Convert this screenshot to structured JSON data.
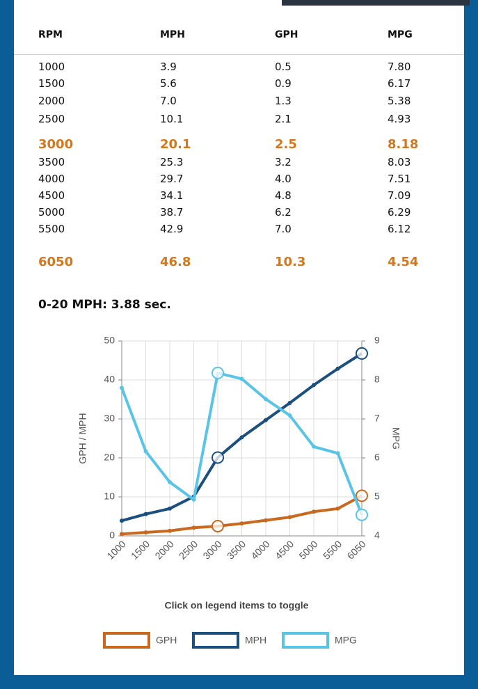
{
  "table": {
    "columns": [
      "RPM",
      "MPH",
      "GPH",
      "MPG"
    ],
    "rows": [
      [
        "1000",
        "3.9",
        "0.5",
        "7.80"
      ],
      [
        "1500",
        "5.6",
        "0.9",
        "6.17"
      ],
      [
        "2000",
        "7.0",
        "1.3",
        "5.38"
      ],
      [
        "2500",
        "10.1",
        "2.1",
        "4.93"
      ],
      [
        "3000",
        "20.1",
        "2.5",
        "8.18"
      ],
      [
        "3500",
        "25.3",
        "3.2",
        "8.03"
      ],
      [
        "4000",
        "29.7",
        "4.0",
        "7.51"
      ],
      [
        "4500",
        "34.1",
        "4.8",
        "7.09"
      ],
      [
        "5000",
        "38.7",
        "6.2",
        "6.29"
      ],
      [
        "5500",
        "42.9",
        "7.0",
        "6.12"
      ],
      [
        "6050",
        "46.8",
        "10.3",
        "4.54"
      ]
    ],
    "highlighted_rows": [
      4,
      10
    ]
  },
  "summary": "0-20 MPH: 3.88 sec.",
  "chart_data": {
    "type": "line",
    "categories": [
      "1000",
      "1500",
      "2000",
      "2500",
      "3000",
      "3500",
      "4000",
      "4500",
      "5000",
      "5500",
      "6050"
    ],
    "ylabel": "GPH / MPH",
    "y2label": "MPG",
    "ylim": [
      0,
      50
    ],
    "yticks": [
      0,
      10,
      20,
      30,
      40,
      50
    ],
    "y2lim": [
      4,
      9
    ],
    "y2ticks": [
      4,
      5,
      6,
      7,
      8,
      9
    ],
    "grid": true,
    "highlight_points": [
      4,
      10
    ],
    "note": "Click on legend items to toggle",
    "series": [
      {
        "name": "GPH",
        "color": "#c9691f",
        "values": [
          0.5,
          0.9,
          1.3,
          2.1,
          2.5,
          3.2,
          4.0,
          4.8,
          6.2,
          7.0,
          10.3
        ]
      },
      {
        "name": "MPH",
        "color": "#1b4f7d",
        "values": [
          3.9,
          5.6,
          7.0,
          10.1,
          20.1,
          25.3,
          29.7,
          34.1,
          38.7,
          42.9,
          46.8
        ]
      },
      {
        "name": "MPG",
        "color": "#5ac4e6",
        "axis": "y2",
        "values": [
          7.8,
          6.17,
          5.38,
          4.93,
          8.18,
          8.03,
          7.51,
          7.09,
          6.29,
          6.12,
          4.54
        ]
      }
    ]
  }
}
